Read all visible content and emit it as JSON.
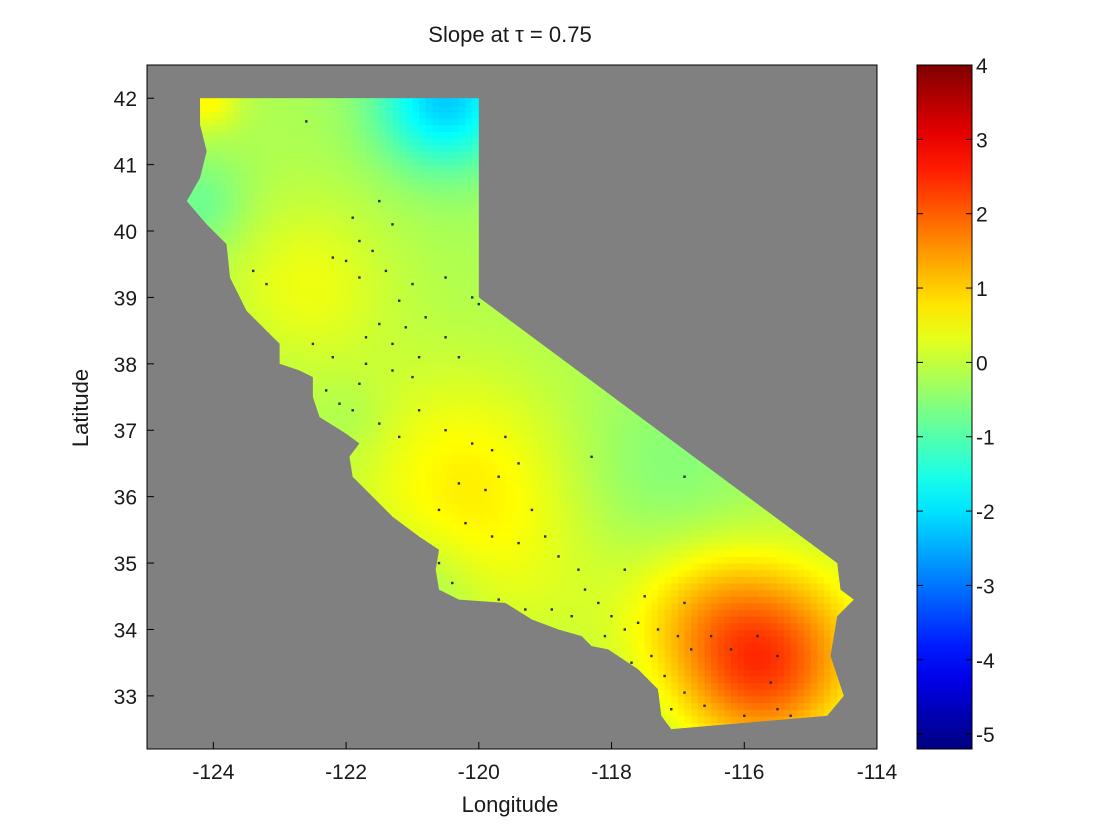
{
  "chart_data": {
    "type": "heatmap",
    "title": "Slope at τ = 0.75",
    "xlabel": "Longitude",
    "ylabel": "Latitude",
    "xlim": [
      -125.0,
      -114.0
    ],
    "ylim": [
      32.2,
      42.5
    ],
    "x_ticks": [
      -124,
      -122,
      -120,
      -118,
      -116,
      -114
    ],
    "x_tick_labels": [
      "-124",
      "-122",
      "-120",
      "-118",
      "-116",
      "-114"
    ],
    "y_ticks": [
      33,
      34,
      35,
      36,
      37,
      38,
      39,
      40,
      41,
      42
    ],
    "y_tick_labels": [
      "33",
      "34",
      "35",
      "36",
      "37",
      "38",
      "39",
      "40",
      "41",
      "42"
    ],
    "background_color": "#808080",
    "colorbar": {
      "colormap": "jet",
      "range": [
        -5.2,
        4.0
      ],
      "ticks": [
        4,
        3,
        2,
        1,
        0,
        -1,
        -2,
        -3,
        -4,
        -5
      ],
      "tick_labels": [
        "4",
        "3",
        "2",
        "1",
        "0",
        "-1",
        "-2",
        "-3",
        "-4",
        "-5"
      ]
    },
    "region": "California",
    "base_value": -0.2,
    "field_hotspots": [
      {
        "lon": -115.4,
        "lat": 33.7,
        "value": 1.6,
        "spread": 0.95
      },
      {
        "lon": -116.6,
        "lat": 34.2,
        "value": 1.0,
        "spread": 0.85
      },
      {
        "lon": -115.9,
        "lat": 33.1,
        "value": 0.9,
        "spread": 0.8
      },
      {
        "lon": -120.3,
        "lat": 36.3,
        "value": 0.75,
        "spread": 1.2
      },
      {
        "lon": -122.6,
        "lat": 39.2,
        "value": 0.6,
        "spread": 0.9
      },
      {
        "lon": -119.0,
        "lat": 35.0,
        "value": 0.35,
        "spread": 1.3
      },
      {
        "lon": -124.1,
        "lat": 42.0,
        "value": 0.8,
        "spread": 0.35
      },
      {
        "lon": -120.5,
        "lat": 42.0,
        "value": -2.0,
        "spread": 0.75
      },
      {
        "lon": -124.2,
        "lat": 40.4,
        "value": -0.6,
        "spread": 0.5
      },
      {
        "lon": -117.3,
        "lat": 36.2,
        "value": -0.45,
        "spread": 1.1
      },
      {
        "lon": -120.8,
        "lat": 34.6,
        "value": -0.35,
        "spread": 0.55
      },
      {
        "lon": -121.9,
        "lat": 37.2,
        "value": -0.2,
        "spread": 0.4
      }
    ],
    "state_outline": [
      [
        -124.2,
        42.0
      ],
      [
        -120.0,
        42.0
      ],
      [
        -120.0,
        39.0
      ],
      [
        -114.6,
        35.0
      ],
      [
        -114.55,
        34.6
      ],
      [
        -114.35,
        34.45
      ],
      [
        -114.6,
        34.2
      ],
      [
        -114.7,
        33.6
      ],
      [
        -114.5,
        33.0
      ],
      [
        -114.75,
        32.7
      ],
      [
        -117.1,
        32.5
      ],
      [
        -117.25,
        32.7
      ],
      [
        -117.3,
        33.1
      ],
      [
        -117.6,
        33.4
      ],
      [
        -118.05,
        33.7
      ],
      [
        -118.3,
        33.75
      ],
      [
        -118.45,
        33.9
      ],
      [
        -118.8,
        34.0
      ],
      [
        -119.2,
        34.15
      ],
      [
        -119.6,
        34.4
      ],
      [
        -120.3,
        34.45
      ],
      [
        -120.6,
        34.6
      ],
      [
        -120.65,
        34.9
      ],
      [
        -120.6,
        35.2
      ],
      [
        -120.9,
        35.4
      ],
      [
        -121.3,
        35.7
      ],
      [
        -121.9,
        36.3
      ],
      [
        -121.95,
        36.6
      ],
      [
        -121.8,
        36.8
      ],
      [
        -122.0,
        36.95
      ],
      [
        -122.4,
        37.2
      ],
      [
        -122.5,
        37.5
      ],
      [
        -122.5,
        37.8
      ],
      [
        -122.7,
        37.9
      ],
      [
        -123.0,
        38.0
      ],
      [
        -123.0,
        38.3
      ],
      [
        -123.5,
        38.8
      ],
      [
        -123.75,
        39.3
      ],
      [
        -123.8,
        39.8
      ],
      [
        -124.1,
        40.1
      ],
      [
        -124.4,
        40.45
      ],
      [
        -124.2,
        40.8
      ],
      [
        -124.1,
        41.2
      ],
      [
        -124.2,
        41.6
      ],
      [
        -124.2,
        42.0
      ]
    ],
    "stations": [
      [
        -122.6,
        41.65
      ],
      [
        -121.5,
        40.45
      ],
      [
        -121.9,
        40.2
      ],
      [
        -121.3,
        40.1
      ],
      [
        -121.6,
        39.7
      ],
      [
        -121.8,
        39.85
      ],
      [
        -122.0,
        39.55
      ],
      [
        -121.8,
        39.3
      ],
      [
        -121.4,
        39.4
      ],
      [
        -121.0,
        39.2
      ],
      [
        -121.2,
        38.95
      ],
      [
        -121.5,
        38.6
      ],
      [
        -121.7,
        38.4
      ],
      [
        -121.3,
        38.3
      ],
      [
        -121.1,
        38.55
      ],
      [
        -120.8,
        38.7
      ],
      [
        -120.5,
        38.4
      ],
      [
        -120.3,
        38.1
      ],
      [
        -120.9,
        38.1
      ],
      [
        -121.0,
        37.8
      ],
      [
        -121.3,
        37.9
      ],
      [
        -121.8,
        37.7
      ],
      [
        -122.3,
        37.6
      ],
      [
        -122.1,
        37.4
      ],
      [
        -121.9,
        37.3
      ],
      [
        -121.5,
        37.1
      ],
      [
        -121.2,
        36.9
      ],
      [
        -120.9,
        37.3
      ],
      [
        -120.5,
        37.0
      ],
      [
        -120.1,
        36.8
      ],
      [
        -119.8,
        36.7
      ],
      [
        -119.6,
        36.9
      ],
      [
        -119.4,
        36.5
      ],
      [
        -119.7,
        36.3
      ],
      [
        -119.9,
        36.1
      ],
      [
        -120.3,
        36.2
      ],
      [
        -120.6,
        35.8
      ],
      [
        -120.2,
        35.6
      ],
      [
        -119.8,
        35.4
      ],
      [
        -119.4,
        35.3
      ],
      [
        -119.0,
        35.4
      ],
      [
        -118.8,
        35.1
      ],
      [
        -118.5,
        34.9
      ],
      [
        -118.4,
        34.6
      ],
      [
        -118.2,
        34.4
      ],
      [
        -118.0,
        34.2
      ],
      [
        -117.8,
        34.0
      ],
      [
        -118.6,
        34.2
      ],
      [
        -118.9,
        34.3
      ],
      [
        -119.3,
        34.3
      ],
      [
        -119.7,
        34.45
      ],
      [
        -120.4,
        34.7
      ],
      [
        -120.6,
        35.0
      ],
      [
        -117.6,
        34.1
      ],
      [
        -117.3,
        34.0
      ],
      [
        -117.0,
        33.9
      ],
      [
        -116.8,
        33.7
      ],
      [
        -116.5,
        33.9
      ],
      [
        -116.2,
        33.7
      ],
      [
        -115.8,
        33.9
      ],
      [
        -115.5,
        33.6
      ],
      [
        -115.6,
        33.2
      ],
      [
        -115.5,
        32.8
      ],
      [
        -115.3,
        32.7
      ],
      [
        -116.0,
        32.7
      ],
      [
        -116.6,
        32.85
      ],
      [
        -116.9,
        33.05
      ],
      [
        -117.1,
        32.8
      ],
      [
        -117.2,
        33.3
      ],
      [
        -117.4,
        33.6
      ],
      [
        -117.7,
        33.5
      ],
      [
        -118.1,
        33.9
      ],
      [
        -116.9,
        34.4
      ],
      [
        -117.5,
        34.5
      ],
      [
        -117.8,
        34.9
      ],
      [
        -116.9,
        36.3
      ],
      [
        -118.3,
        36.6
      ],
      [
        -119.2,
        35.8
      ],
      [
        -121.7,
        38.0
      ],
      [
        -122.2,
        38.1
      ],
      [
        -122.5,
        38.3
      ],
      [
        -123.2,
        39.2
      ],
      [
        -123.4,
        39.4
      ],
      [
        -122.2,
        39.6
      ],
      [
        -120.5,
        39.3
      ],
      [
        -120.1,
        39.0
      ],
      [
        -120.0,
        38.9
      ]
    ]
  }
}
